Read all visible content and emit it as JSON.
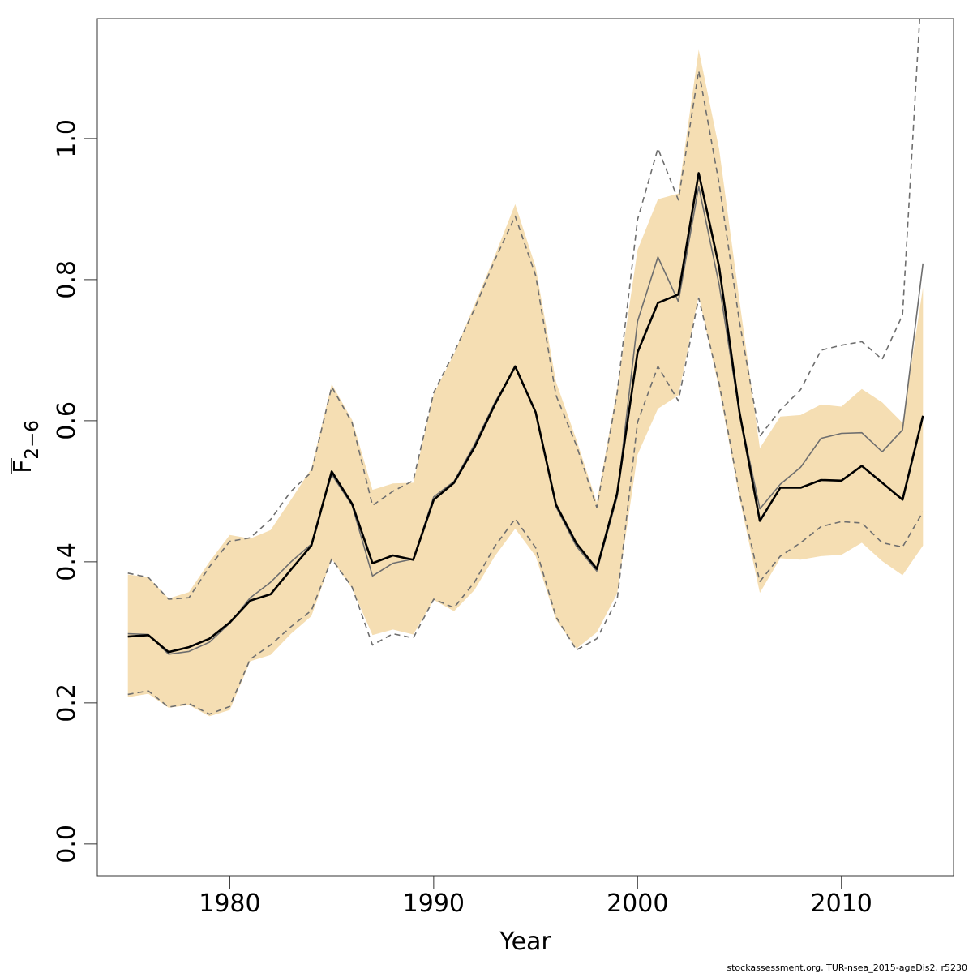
{
  "chart_data": {
    "type": "line",
    "xlabel": "Year",
    "ylabel": "F",
    "ylabel_sub": "2−6",
    "xlim": [
      1973.5,
      2015.5
    ],
    "ylim": [
      -0.045,
      1.17
    ],
    "xticks": [
      1980,
      1990,
      2000,
      2010
    ],
    "xtick_labels": [
      "1980",
      "1990",
      "2000",
      "2010"
    ],
    "yticks": [
      0.0,
      0.2,
      0.4,
      0.6,
      0.8,
      1.0
    ],
    "ytick_labels": [
      "0.0",
      "0.2",
      "0.4",
      "0.6",
      "0.8",
      "1.0"
    ],
    "grid": false,
    "footnote": "stockassessment.org, TUR-nsea_2015-ageDis2, r5230",
    "x": [
      1975,
      1976,
      1977,
      1978,
      1979,
      1980,
      1981,
      1982,
      1983,
      1984,
      1985,
      1986,
      1987,
      1988,
      1989,
      1990,
      1991,
      1992,
      1993,
      1994,
      1995,
      1996,
      1997,
      1998,
      1999,
      2000,
      2001,
      2002,
      2003,
      2004,
      2005,
      2006,
      2007,
      2008,
      2009,
      2010,
      2011,
      2012,
      2013,
      2014
    ],
    "series": [
      {
        "role": "confidence-band",
        "color": "#f5deb3",
        "lower": [
          0.208,
          0.213,
          0.193,
          0.197,
          0.181,
          0.19,
          0.259,
          0.268,
          0.298,
          0.323,
          0.404,
          0.362,
          0.296,
          0.304,
          0.297,
          0.346,
          0.33,
          0.36,
          0.408,
          0.447,
          0.408,
          0.318,
          0.277,
          0.3,
          0.355,
          0.552,
          0.617,
          0.636,
          0.777,
          0.645,
          0.49,
          0.356,
          0.405,
          0.403,
          0.408,
          0.41,
          0.427,
          0.401,
          0.381,
          0.423
        ],
        "upper": [
          0.382,
          0.378,
          0.348,
          0.357,
          0.4,
          0.438,
          0.433,
          0.445,
          0.488,
          0.532,
          0.652,
          0.601,
          0.502,
          0.511,
          0.512,
          0.638,
          0.695,
          0.764,
          0.834,
          0.907,
          0.818,
          0.655,
          0.573,
          0.484,
          0.645,
          0.842,
          0.914,
          0.922,
          1.126,
          0.985,
          0.77,
          0.561,
          0.606,
          0.608,
          0.623,
          0.62,
          0.645,
          0.626,
          0.597,
          0.789
        ]
      },
      {
        "role": "estimate",
        "color": "#000000",
        "values": [
          0.294,
          0.296,
          0.272,
          0.279,
          0.291,
          0.314,
          0.345,
          0.354,
          0.389,
          0.423,
          0.528,
          0.482,
          0.398,
          0.409,
          0.403,
          0.488,
          0.512,
          0.562,
          0.623,
          0.677,
          0.612,
          0.481,
          0.426,
          0.39,
          0.497,
          0.697,
          0.767,
          0.779,
          0.951,
          0.818,
          0.612,
          0.458,
          0.505,
          0.505,
          0.516,
          0.515,
          0.536,
          0.512,
          0.488,
          0.607
        ]
      },
      {
        "role": "previous-estimate",
        "color": "#6e6e6e",
        "values": [
          0.298,
          0.297,
          0.269,
          0.273,
          0.286,
          0.313,
          0.349,
          0.371,
          0.4,
          0.425,
          0.524,
          0.48,
          0.38,
          0.398,
          0.404,
          0.492,
          0.514,
          0.566,
          0.626,
          0.676,
          0.611,
          0.478,
          0.422,
          0.387,
          0.492,
          0.741,
          0.832,
          0.769,
          0.932,
          0.793,
          0.611,
          0.475,
          0.51,
          0.534,
          0.575,
          0.582,
          0.583,
          0.556,
          0.587,
          0.823
        ]
      },
      {
        "role": "previous-lower",
        "color": "#6e6e6e",
        "dashed": true,
        "values": [
          0.212,
          0.217,
          0.194,
          0.199,
          0.184,
          0.195,
          0.262,
          0.282,
          0.308,
          0.331,
          0.404,
          0.364,
          0.282,
          0.298,
          0.292,
          0.347,
          0.335,
          0.371,
          0.422,
          0.461,
          0.42,
          0.322,
          0.275,
          0.291,
          0.346,
          0.598,
          0.677,
          0.628,
          0.774,
          0.653,
          0.497,
          0.372,
          0.408,
          0.427,
          0.45,
          0.457,
          0.455,
          0.427,
          0.421,
          0.471
        ],
        "clipped_above_plot": false
      },
      {
        "role": "previous-upper",
        "color": "#6e6e6e",
        "dashed": true,
        "values": [
          0.384,
          0.378,
          0.347,
          0.349,
          0.393,
          0.429,
          0.434,
          0.46,
          0.5,
          0.527,
          0.648,
          0.597,
          0.48,
          0.5,
          0.515,
          0.64,
          0.697,
          0.758,
          0.828,
          0.89,
          0.806,
          0.636,
          0.565,
          0.477,
          0.639,
          0.885,
          0.986,
          0.913,
          1.096,
          0.936,
          0.74,
          0.578,
          0.615,
          0.644,
          0.7,
          0.707,
          0.712,
          0.687,
          0.75,
          1.25
        ]
      }
    ]
  }
}
